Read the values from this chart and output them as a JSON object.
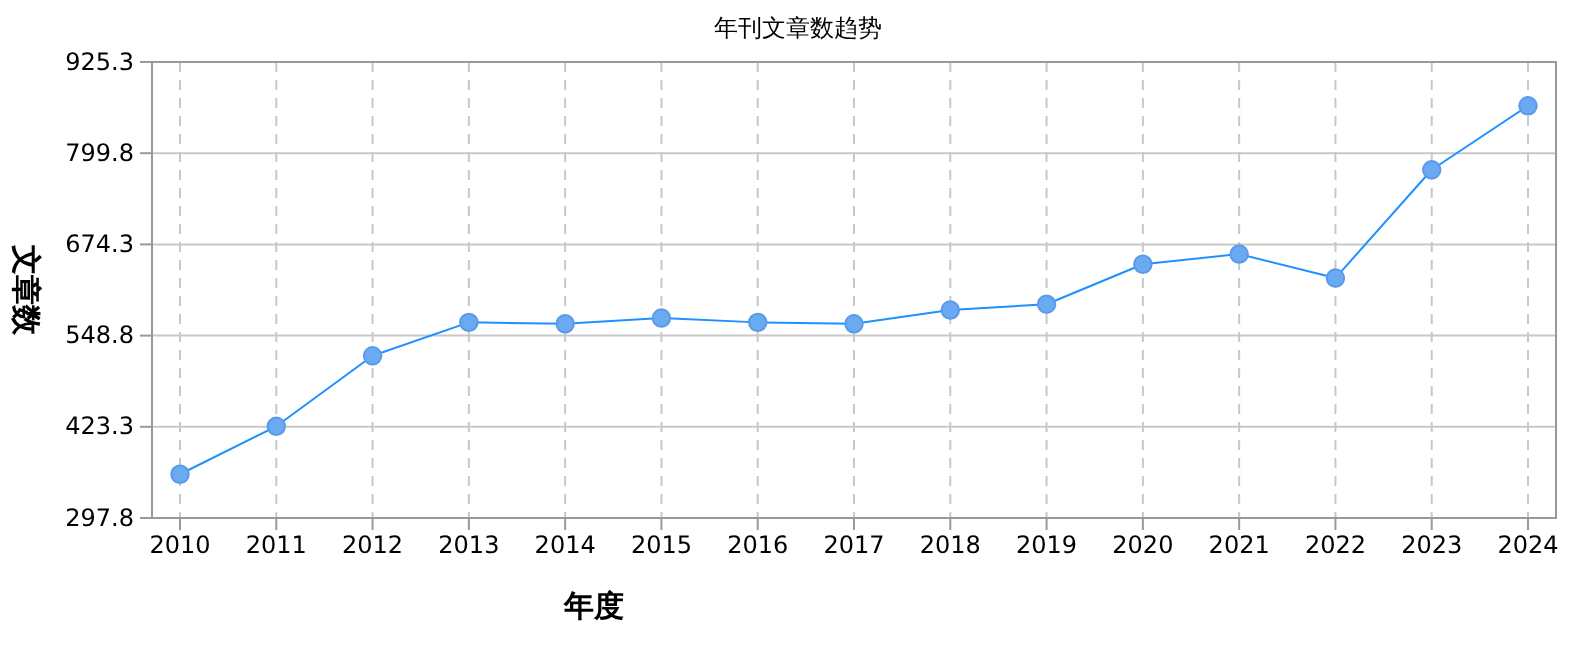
{
  "chart_data": {
    "type": "line",
    "title": "年刊文章数趋势",
    "xlabel": "年度",
    "ylabel": "文章数",
    "categories": [
      "2010",
      "2011",
      "2012",
      "2013",
      "2014",
      "2015",
      "2016",
      "2017",
      "2018",
      "2019",
      "2020",
      "2021",
      "2022",
      "2023",
      "2024"
    ],
    "series": [
      {
        "color": "#1e90ff",
        "values": [
          358,
          424,
          521,
          567,
          565,
          573,
          567,
          565,
          584,
          592,
          647,
          661,
          628,
          777,
          865
        ]
      }
    ],
    "ylim": [
      297.8,
      925.3
    ],
    "yticks": [
      297.8,
      423.3,
      548.8,
      674.3,
      799.8,
      925.3
    ],
    "grid": true,
    "marker": "circle",
    "line_style": "solid"
  }
}
